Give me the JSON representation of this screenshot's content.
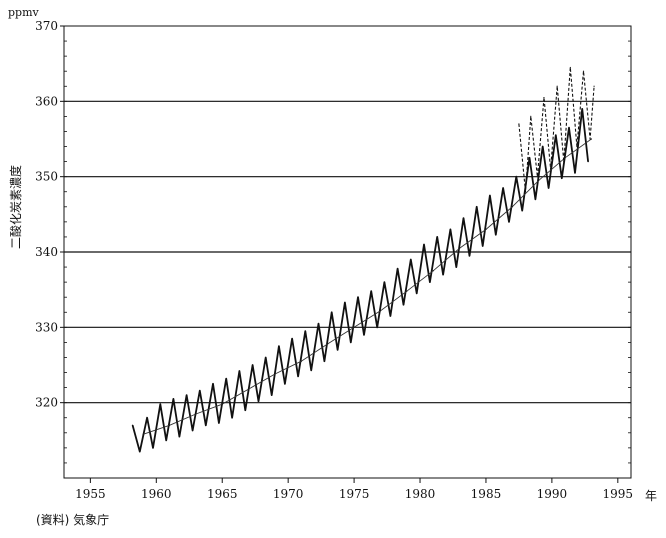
{
  "chart_data": {
    "type": "line",
    "title": "",
    "ylabel": "二酸化炭素濃度",
    "yunit": "ppmv",
    "xunit": "年",
    "xlim": [
      1953,
      1996
    ],
    "ylim": [
      310,
      370
    ],
    "yticks": [
      "320",
      "330",
      "340",
      "350",
      "360",
      "370"
    ],
    "xticks": [
      "1955",
      "1960",
      "1965",
      "1970",
      "1975",
      "1980",
      "1985",
      "1990",
      "1995"
    ],
    "grid": "horizontal",
    "series": [
      {
        "style": "solid",
        "x": [
          1958.2,
          1958.75,
          1959.3,
          1959.75,
          1960.3,
          1960.75,
          1961.3,
          1961.75,
          1962.3,
          1962.75,
          1963.3,
          1963.75,
          1964.3,
          1964.75,
          1965.3,
          1965.75,
          1966.3,
          1966.75,
          1967.3,
          1967.75,
          1968.3,
          1968.75,
          1969.3,
          1969.75,
          1970.3,
          1970.75,
          1971.3,
          1971.75,
          1972.3,
          1972.75,
          1973.3,
          1973.75,
          1974.3,
          1974.75,
          1975.3,
          1975.75,
          1976.3,
          1976.75,
          1977.3,
          1977.75,
          1978.3,
          1978.75,
          1979.3,
          1979.75,
          1980.3,
          1980.75,
          1981.3,
          1981.75,
          1982.3,
          1982.75,
          1983.3,
          1983.75,
          1984.3,
          1984.75,
          1985.3,
          1985.75,
          1986.3,
          1986.75,
          1987.3,
          1987.75,
          1988.3,
          1988.75,
          1989.3,
          1989.75,
          1990.3,
          1990.75,
          1991.3,
          1991.75,
          1992.3,
          1992.75
        ],
        "values": [
          317.0,
          313.5,
          318.0,
          314.0,
          319.8,
          315.0,
          320.5,
          315.5,
          321.0,
          316.3,
          321.6,
          317.0,
          322.5,
          317.3,
          323.2,
          318.0,
          324.2,
          319.0,
          325.0,
          320.2,
          326.0,
          321.0,
          327.5,
          322.5,
          328.5,
          323.5,
          329.5,
          324.3,
          330.5,
          325.5,
          332.0,
          327.0,
          333.3,
          328.0,
          334.0,
          329.0,
          334.8,
          330.0,
          336.0,
          331.5,
          337.8,
          333.0,
          339.0,
          334.5,
          341.0,
          336.0,
          342.0,
          337.0,
          343.0,
          338.0,
          344.5,
          339.5,
          346.0,
          340.8,
          347.5,
          342.3,
          348.5,
          344.0,
          350.0,
          345.5,
          352.5,
          347.0,
          354.0,
          348.5,
          355.5,
          349.8,
          356.5,
          350.5,
          359.0,
          352.0
        ]
      },
      {
        "style": "thin",
        "x": [
          1959,
          1961,
          1963,
          1965,
          1967,
          1969,
          1971,
          1973,
          1975,
          1977,
          1979,
          1981,
          1983,
          1985,
          1987,
          1989,
          1991,
          1993
        ],
        "values": [
          315.8,
          317.0,
          318.5,
          319.8,
          321.8,
          323.8,
          325.5,
          327.8,
          330.0,
          332.2,
          334.8,
          337.5,
          340.5,
          343.0,
          346.0,
          349.5,
          352.5,
          355.0
        ]
      },
      {
        "style": "dashed",
        "x": [
          1987.5,
          1988.0,
          1988.4,
          1988.9,
          1989.4,
          1989.9,
          1990.4,
          1990.9,
          1991.4,
          1991.9,
          1992.4,
          1992.9,
          1993.2
        ],
        "values": [
          357.0,
          348.0,
          358.0,
          350.0,
          360.5,
          351.0,
          362.0,
          352.0,
          364.5,
          354.0,
          364.0,
          355.0,
          362.0
        ]
      }
    ],
    "annotations": [
      "(資料) 気象庁"
    ]
  }
}
